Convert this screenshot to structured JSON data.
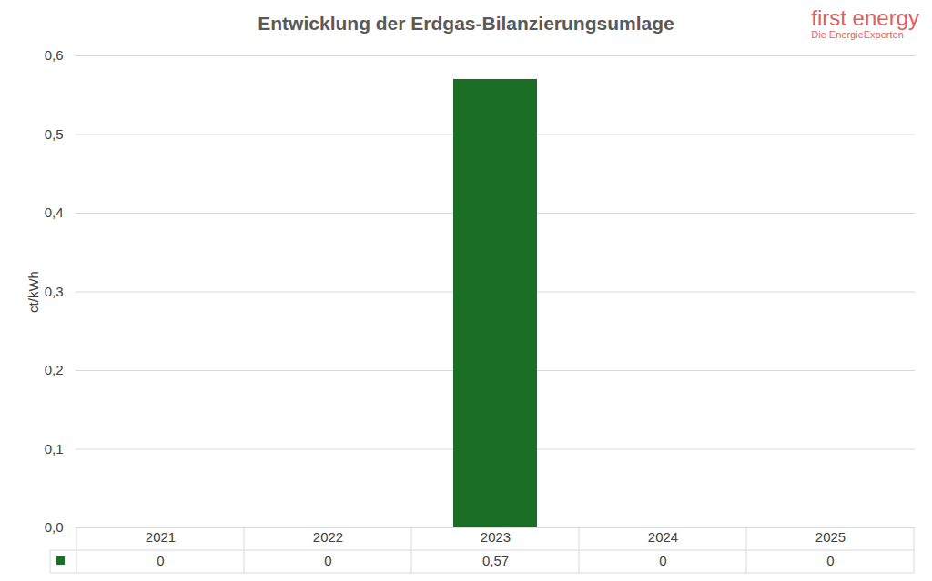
{
  "chart_data": {
    "type": "bar",
    "title": "Entwicklung der Erdgas-Bilanzierungsumlage",
    "y_label": "ct/kWh",
    "categories": [
      "2021",
      "2022",
      "2023",
      "2024",
      "2025"
    ],
    "values": [
      0,
      0,
      0.57,
      0,
      0
    ],
    "value_labels": [
      "0",
      "0",
      "0,57",
      "0",
      "0"
    ],
    "color": "#1b6e25",
    "ylim": [
      0,
      0.6
    ],
    "yticks": [
      {
        "value": 0,
        "label": "0,0"
      },
      {
        "value": 0.1,
        "label": "0,1"
      },
      {
        "value": 0.2,
        "label": "0,2"
      },
      {
        "value": 0.3,
        "label": "0,3"
      },
      {
        "value": 0.4,
        "label": "0,4"
      },
      {
        "value": 0.5,
        "label": "0,5"
      },
      {
        "value": 0.6,
        "label": "0,6"
      }
    ],
    "grid": true,
    "data_labels": true,
    "annotations": [
      "first energy",
      "Die EnergieExperten"
    ]
  }
}
